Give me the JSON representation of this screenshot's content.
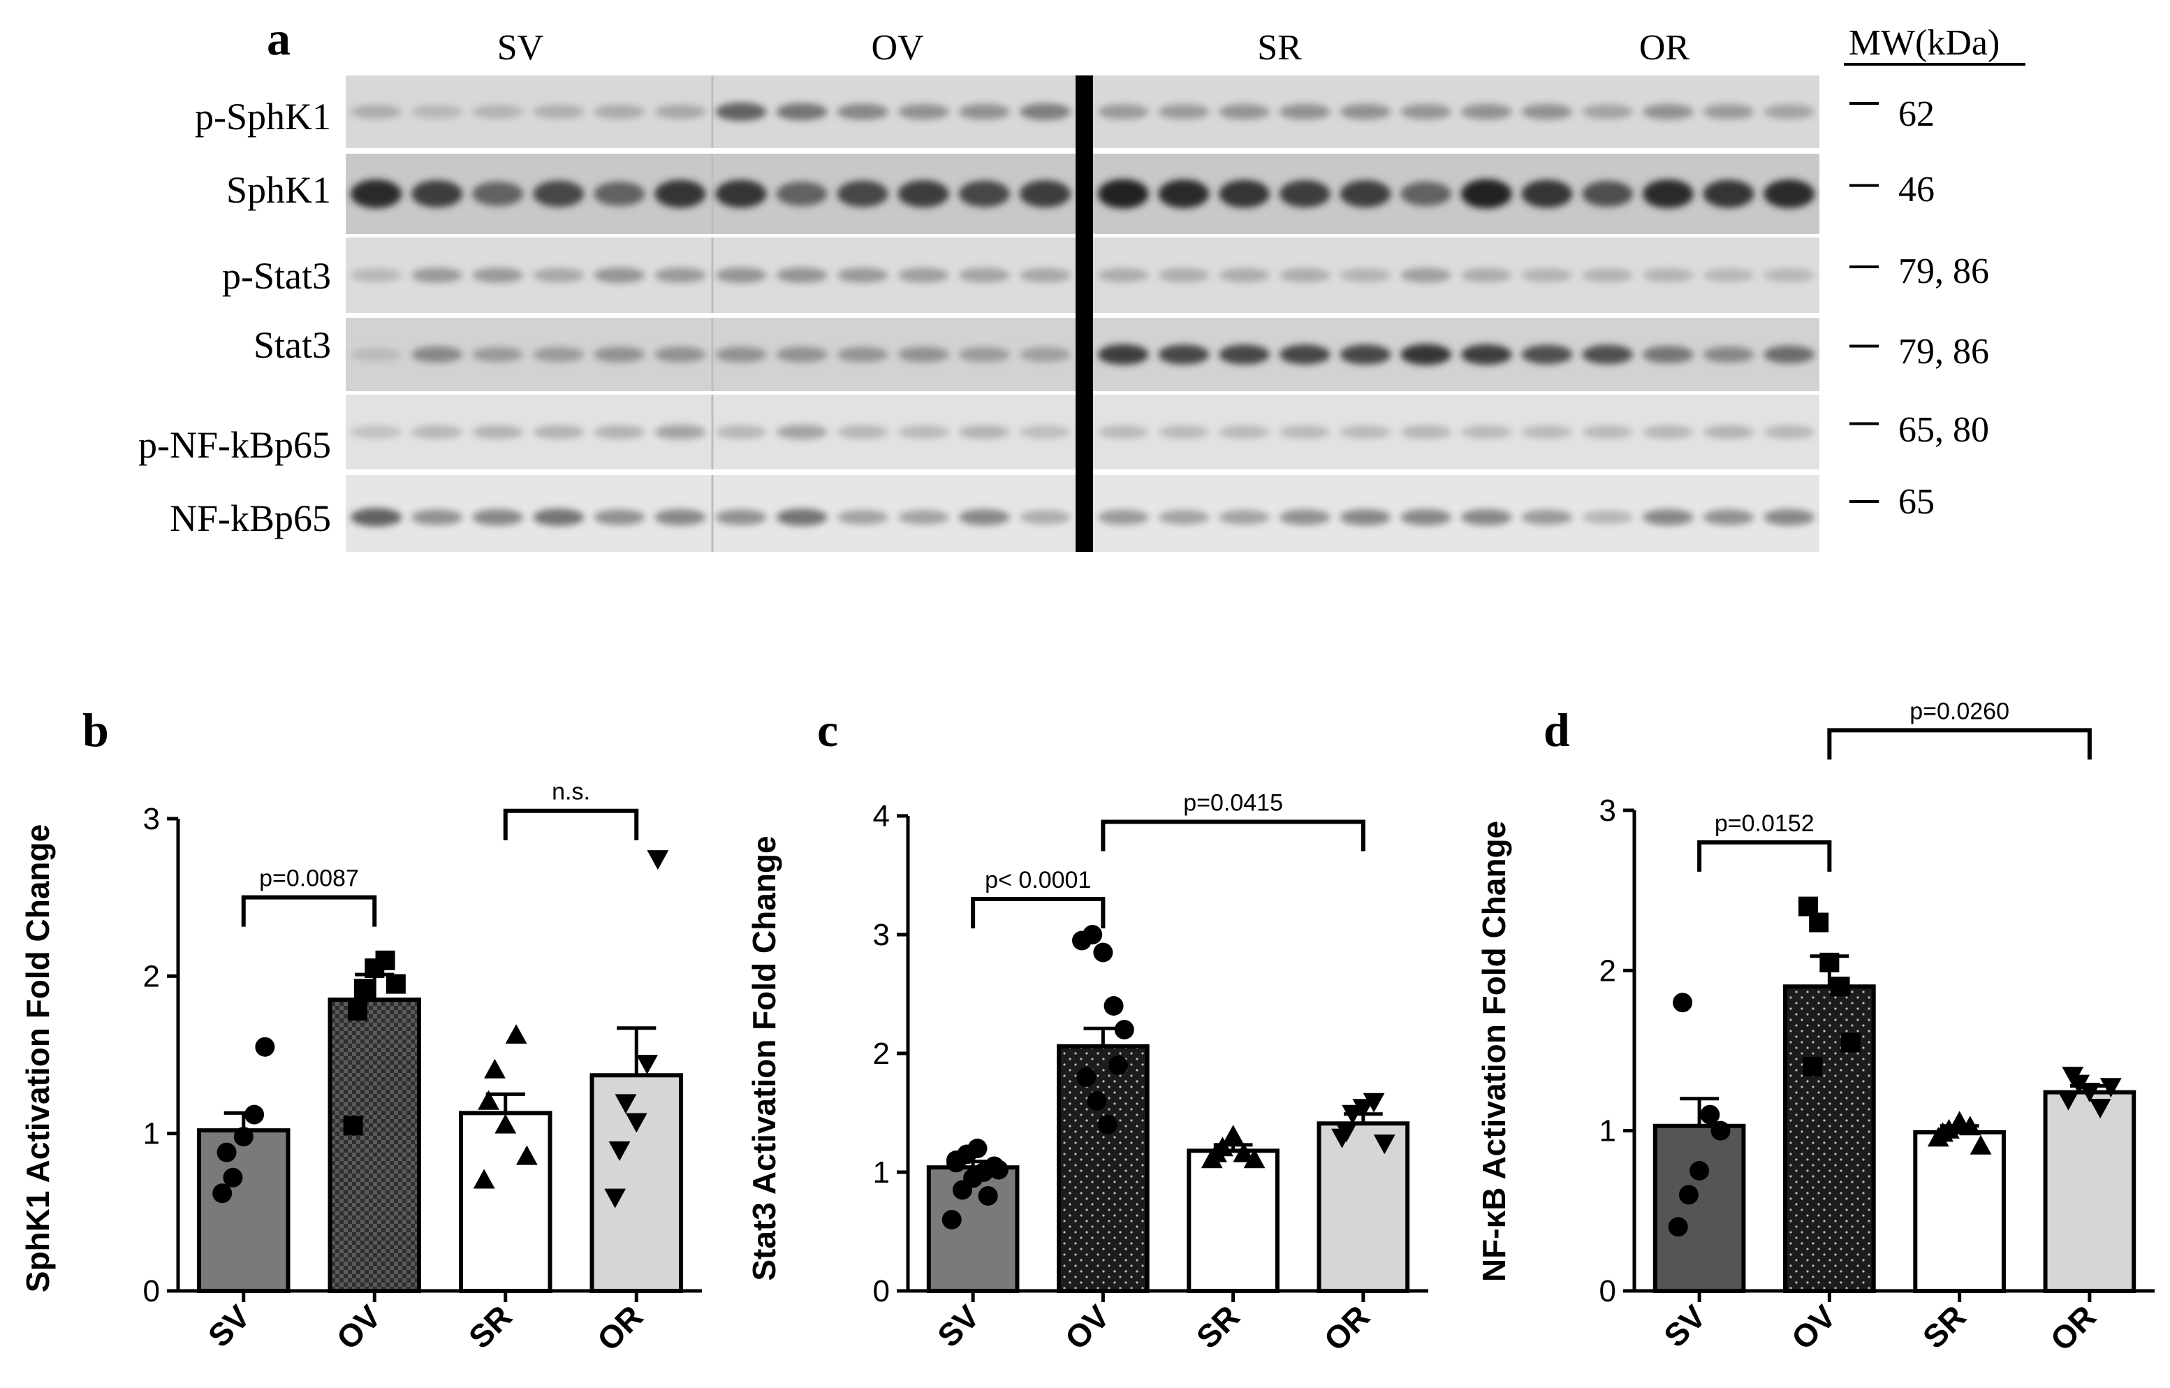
{
  "panel_a": {
    "letter": "a",
    "groups": [
      "SV",
      "OV",
      "SR",
      "OR"
    ],
    "mw_header": "MW(kDa)",
    "rows": [
      {
        "label": "p-SphK1",
        "mw": "62"
      },
      {
        "label": "SphK1",
        "mw": "46"
      },
      {
        "label": "p-Stat3",
        "mw": "79, 86"
      },
      {
        "label": "Stat3",
        "mw": "79, 86"
      },
      {
        "label": "p-NF-kBp65",
        "mw": "65, 80"
      },
      {
        "label": "NF-kBp65",
        "mw": "65"
      }
    ]
  },
  "chart_data": [
    {
      "panel": "b",
      "type": "bar",
      "ylabel": "SphK1 Activation Fold Change",
      "categories": [
        "SV",
        "OV",
        "SR",
        "OR"
      ],
      "ylim": [
        0,
        3
      ],
      "yticks": [
        0,
        1,
        2,
        3
      ],
      "values": [
        1.02,
        1.85,
        1.13,
        1.37
      ],
      "errors": [
        0.11,
        0.16,
        0.12,
        0.3
      ],
      "colors": [
        "#7a7a7a",
        "#555555",
        "#ffffff",
        "#d6d6d6"
      ],
      "patterns": [
        "none",
        "check",
        "none",
        "none"
      ],
      "markers": [
        "circle",
        "square",
        "triangle",
        "triangle-down"
      ],
      "points": [
        [
          0.62,
          0.72,
          0.98,
          1.12,
          1.55,
          0.88
        ],
        [
          1.05,
          1.92,
          2.05,
          2.1,
          1.95,
          1.78
        ],
        [
          0.7,
          1.4,
          1.05,
          1.62,
          0.85,
          1.2
        ],
        [
          0.6,
          1.2,
          1.08,
          1.45,
          2.75,
          0.9
        ]
      ],
      "comparisons": [
        {
          "from": 0,
          "to": 1,
          "label": "p=0.0087",
          "y": 2.5
        },
        {
          "from": 2,
          "to": 3,
          "label": "n.s.",
          "y": 3.05
        }
      ]
    },
    {
      "panel": "c",
      "type": "bar",
      "ylabel": "Stat3 Activation Fold Change",
      "categories": [
        "SV",
        "OV",
        "SR",
        "OR"
      ],
      "ylim": [
        0,
        4
      ],
      "yticks": [
        0,
        1,
        2,
        3,
        4
      ],
      "values": [
        1.04,
        2.06,
        1.18,
        1.41
      ],
      "errors": [
        0.05,
        0.15,
        0.05,
        0.08
      ],
      "colors": [
        "#7a7a7a",
        "#222222",
        "#ffffff",
        "#d6d6d6"
      ],
      "patterns": [
        "none",
        "dots",
        "none",
        "none"
      ],
      "markers": [
        "circle",
        "circle",
        "triangle",
        "triangle-down"
      ],
      "points": [
        [
          0.6,
          0.85,
          0.95,
          1.0,
          1.05,
          1.1,
          1.15,
          1.2,
          0.8,
          1.02,
          1.08
        ],
        [
          2.95,
          3.0,
          2.85,
          2.4,
          2.2,
          1.8,
          1.6,
          1.4,
          1.9
        ],
        [
          1.1,
          1.2,
          1.3,
          1.15,
          1.1,
          1.15
        ],
        [
          1.3,
          1.5,
          1.55,
          1.6,
          1.25,
          1.35
        ]
      ],
      "comparisons": [
        {
          "from": 0,
          "to": 1,
          "label": "p< 0.0001",
          "y": 3.3
        },
        {
          "from": 1,
          "to": 3,
          "label": "p=0.0415",
          "y": 3.95
        }
      ]
    },
    {
      "panel": "d",
      "type": "bar",
      "ylabel": "NF-κB Activation Fold Change",
      "categories": [
        "SV",
        "OV",
        "SR",
        "OR"
      ],
      "ylim": [
        0,
        3
      ],
      "yticks": [
        0,
        1,
        2,
        3
      ],
      "values": [
        1.03,
        1.9,
        0.99,
        1.24
      ],
      "errors": [
        0.17,
        0.19,
        0.04,
        0.04
      ],
      "colors": [
        "#555555",
        "#1e1e1e",
        "#ffffff",
        "#d6d6d6"
      ],
      "patterns": [
        "none",
        "dots",
        "none",
        "none"
      ],
      "markers": [
        "circle",
        "square",
        "triangle",
        "triangle-down"
      ],
      "points": [
        [
          0.4,
          0.6,
          0.75,
          1.1,
          1.0,
          1.8
        ],
        [
          2.4,
          2.3,
          2.05,
          1.9,
          1.55,
          1.4
        ],
        [
          0.95,
          1.0,
          1.05,
          1.02,
          0.9,
          0.98
        ],
        [
          1.2,
          1.3,
          1.25,
          1.15,
          1.28,
          1.35
        ]
      ],
      "comparisons": [
        {
          "from": 0,
          "to": 1,
          "label": "p=0.0152",
          "y": 2.8
        },
        {
          "from": 1,
          "to": 3,
          "label": "p=0.0260",
          "y": 3.5
        }
      ]
    }
  ]
}
